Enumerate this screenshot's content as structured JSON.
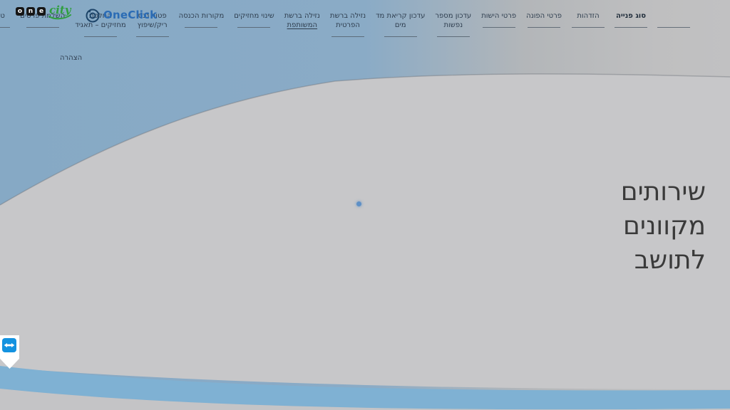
{
  "logos": {
    "onecity": {
      "letters": [
        "o",
        "n",
        "e"
      ],
      "script": "city"
    },
    "oneclick": {
      "text": "OneClick"
    }
  },
  "nav": {
    "items": [
      {
        "label_lines": [
          ""
        ],
        "blank": true
      },
      {
        "label_lines": [
          "סוג פנייה"
        ],
        "active": true
      },
      {
        "label_lines": [
          "הזדהות"
        ]
      },
      {
        "label_lines": [
          "פרטי הפונה"
        ]
      },
      {
        "label_lines": [
          "פרטי הישות"
        ]
      },
      {
        "label_lines": [
          "עדכון מספר",
          "נפשות"
        ]
      },
      {
        "label_lines": [
          "עדכון קריאת מד",
          "מים"
        ]
      },
      {
        "label_lines": [
          "נזילה ברשת",
          "הפרטית"
        ]
      },
      {
        "label_lines": [
          "נזילה ברשת",
          "המשותפת"
        ],
        "link_underline": true
      },
      {
        "label_lines": [
          "שינוי מחזיקים"
        ]
      },
      {
        "label_lines": [
          "מקורות הכנסה"
        ]
      },
      {
        "label_lines": [
          "פטור נכס",
          "ריק/שיפוץ"
        ]
      },
      {
        "label_lines": [
          "החלפת",
          "מחזיקים – תאגיד"
        ]
      },
      {
        "label_lines": [
          "השלמת פרטים"
        ]
      },
      {
        "label_lines": [
          "טעינת ו"
        ],
        "clipped": true
      }
    ],
    "declaration": {
      "label": "הצהרה"
    }
  },
  "hero": {
    "lines": [
      "שירותים",
      "מקוונים",
      "לתושב"
    ]
  },
  "badges": {
    "teamviewer": {
      "icon": "teamviewer-arrows-icon"
    }
  },
  "colors": {
    "background_blue": "#87aac6",
    "panel_gray": "#c7c7c9",
    "stripe_blue": "#7fb1d3",
    "bottom_gray": "#c4c4c6",
    "nav_text": "#2e3d4e",
    "heading_text": "#3a3a3a",
    "oneclick_blue": "#2b6cb5",
    "onecity_green": "#2f9e3f",
    "teamviewer_blue": "#1392e0"
  }
}
